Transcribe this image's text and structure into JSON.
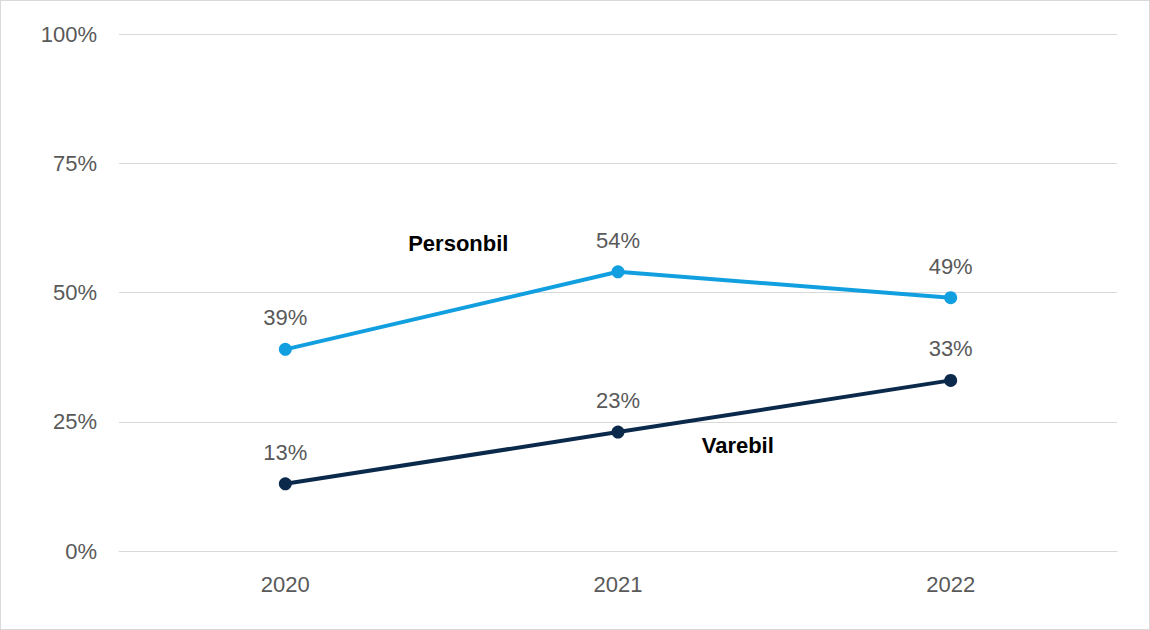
{
  "chart_data": {
    "type": "line",
    "categories": [
      "2020",
      "2021",
      "2022"
    ],
    "series": [
      {
        "name": "Personbil",
        "color": "#119fe0",
        "values": [
          39,
          54,
          49
        ],
        "value_labels": [
          "39%",
          "54%",
          "49%"
        ],
        "marker": "circle"
      },
      {
        "name": "Varebil",
        "color": "#0b2a4b",
        "values": [
          13,
          23,
          33
        ],
        "value_labels": [
          "13%",
          "23%",
          "33%"
        ],
        "marker": "circle"
      }
    ],
    "ylim": [
      0,
      100
    ],
    "yticks": [
      {
        "value": 0,
        "label": "0%"
      },
      {
        "value": 25,
        "label": "25%"
      },
      {
        "value": 50,
        "label": "50%"
      },
      {
        "value": 75,
        "label": "75%"
      },
      {
        "value": 100,
        "label": "100%"
      }
    ],
    "grid": true,
    "data_labels": true
  }
}
